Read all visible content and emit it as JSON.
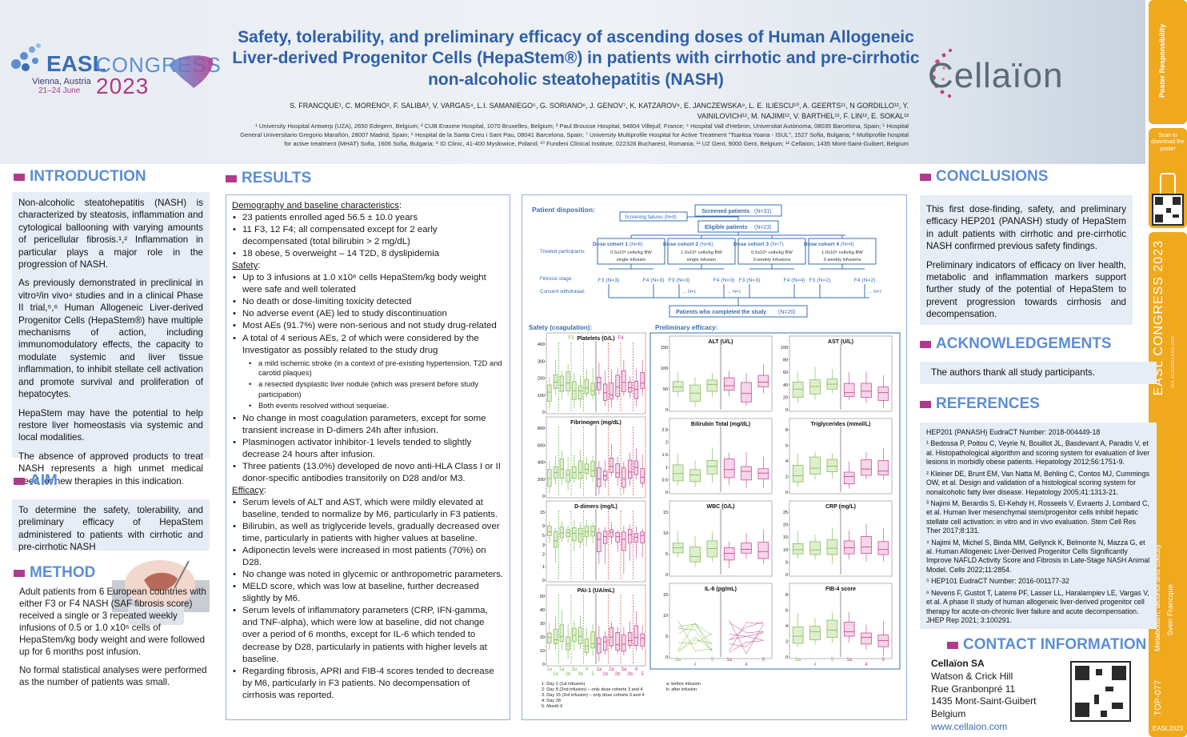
{
  "brand": {
    "easl": "EASL",
    "congress": "CONGRESS",
    "city": "Vienna, Austria",
    "dates": "21–24 June",
    "year": "2023",
    "company": "Cellaïon"
  },
  "title": "Safety, tolerability, and preliminary efficacy of ascending doses of Human Allogeneic Liver-derived Progenitor Cells (HepaStem®) in patients with cirrhotic and pre-cirrhotic non-alcoholic steatohepatitis (NASH)",
  "authors": "S. FRANCQUE¹, C. MORENO², F. SALIBA³, V. VARGAS⁴, L.I. SAMANIEGO⁵, G. SORIANO⁶, J. GENOV⁷, K. KATZAROV⁸, E. JANCZEWSKA⁹, L. E. ILIESCU¹⁰, A. GEERTS¹¹, N GORDILLO¹², Y. VAINILOVICH¹², M. NAJIMI¹², V. BARTHEL¹², F. LIN¹², E. SOKAL¹²",
  "affiliations": "¹ University Hospital Antwerp (UZA), 2650 Edegem, Belgium; ² CUB Erasme Hospital, 1070 Bruxelles, Belgium; ³ Paul Brousse Hospital, 94804 Villejuif, France; ⁴ Hospital Vall d'Hebron, Universitat Autònoma, 08035 Barcelona, Spain; ⁵ Hospital General Universitario Gregorio Marañón, 28007 Madrid, Spain; ⁶ Hospital de la Santa Creu i Sant Pau, 08041 Barcelona, Spain; ⁷ University Multiprofile Hospital for Active Treatment \"Tsaritsa Yoana - ISUL\", 1527 Sofia, Bulgaria; ⁸ Multiprofile hospital for active treatment (MHAT) Sofia, 1606 Sofia, Bulgaria; ⁹ ID Clinic, 41-400 Mysłowice, Poland; ¹⁰ Fundeni Clinical Institute, 022328 Bucharest, Romania; ¹¹ UZ Gent, 9000 Gent, Belgium; ¹² Cellaïon, 1435 Mont-Saint-Guibert, Belgium",
  "sidebar": {
    "scan": "Scan to download the poster",
    "congress": "EASL CONGRESS 2023",
    "session": "Metabolism, alcohol and toxicity",
    "presenter": "Sven Francque",
    "code": "TOP-077",
    "year_code": "EASL2023"
  },
  "introduction": {
    "heading": "INTRODUCTION",
    "p1": "Non-alcoholic steatohepatitis (NASH) is characterized by steatosis, inflammation and cytological ballooning with varying amounts of pericellular fibrosis.¹,² Inflammation in particular plays a major role in the progression of NASH.",
    "p2": "As previously demonstrated in preclinical in vitro³/in vivo⁴ studies and in a clinical Phase II trial,⁵,⁶ Human Allogeneic Liver-derived Progenitor Cells (HepaStem®) have multiple mechanisms of action, including immunomodulatory effects, the capacity to modulate systemic and liver tissue inflammation, to inhibit stellate cell activation and promote survival and proliferation of hepatocytes.",
    "p3": "HepaStem may have the potential to help restore liver homeostasis via systemic and local modalities.",
    "p4": "The absence of approved products to treat NASH represents a high unmet medical need for new therapies in this indication."
  },
  "aim": {
    "heading": "AIM",
    "text": "To determine the safety, tolerability, and preliminary efficacy of HepaStem administered to patients with cirrhotic and pre-cirrhotic NASH"
  },
  "method": {
    "heading": "METHOD",
    "p1": "Adult patients from 6 European countries with either F3 or F4 NASH (SAF fibrosis score) received a single or 3 repeated weekly infusions of 0.5 or 1.0 x10⁶ cells of HepaStem/kg body weight and were followed up for 6 months post infusion.",
    "p2": "No formal statistical analyses were performed as the number of patients was small."
  },
  "results": {
    "heading": "RESULTS",
    "demo_title": "Demography and baseline characteristics",
    "demo": [
      "23 patients enrolled aged 56.5 ± 10.0 years",
      "11 F3, 12 F4; all compensated except for 2 early decompensated (total bilirubin > 2 mg/dL)",
      "18 obese, 5 overweight – 14 T2D, 8 dyslipidemia"
    ],
    "safety_title": "Safety",
    "safety": [
      "Up to 3 infusions at 1.0 x10⁶ cells HepaStem/kg body weight were safe and well tolerated",
      "No death or dose-limiting toxicity detected",
      "No adverse event (AE) led to study discontinuation",
      "Most AEs (91.7%) were non-serious and not study drug-related",
      "A total of 4 serious AEs, 2 of which were considered by the Investigator as possibly related to the study drug"
    ],
    "safety_sub": [
      "a mild ischemic stroke (in a context of pre-existing hypertension, T2D and carotid plaques)",
      "a resected dysplastic liver nodule (which was present before study participation)",
      "Both events resolved without sequelae."
    ],
    "safety2": [
      "No change in most coagulation parameters, except for some transient increase in D-dimers 24h after infusion.",
      "Plasminogen activator inhibitor-1 levels tended to slightly decrease 24 hours after infusion.",
      "Three patients (13.0%) developed de novo anti-HLA Class I or II donor-specific antibodies transitorily on D28 and/or M3."
    ],
    "efficacy_title": "Efficacy",
    "efficacy": [
      "Serum levels of ALT and AST, which were mildly elevated at baseline, tended to normalize by M6, particularly in F3 patients.",
      "Bilirubin, as well as triglyceride levels, gradually decreased over time, particularly in patients with higher values at baseline.",
      "Adiponectin levels were increased in most patients (70%) on D28.",
      "No change was noted in glycemic or anthropometric parameters.",
      "MELD score, which was low at baseline, further decreased slightly by M6.",
      "Serum levels of inflammatory parameters (CRP, IFN-gamma, and TNF-alpha), which were low at baseline, did not change over a period of 6 months, except for IL-6 which tended to decrease by D28, particularly in patients with higher levels at baseline.",
      "Regarding fibrosis, APRI and FIB-4 scores tended to decrease by M6, particularly in F3 patients. No decompensation of cirrhosis was reported."
    ]
  },
  "disposition": {
    "label": "Patient disposition:",
    "screened": "Screened patients",
    "screened_n": "(N=31)",
    "failures": "Screening failures (N=8)",
    "eligible": "Eligible patients",
    "eligible_n": "(N=23)",
    "treated": "Treated participants:",
    "fibrosis": "Fibrosis stage:",
    "withdrawal": "Consent withdrawal:",
    "completed": "Patients who completed the study",
    "completed_n": "(N=20)",
    "cohorts": [
      {
        "name": "Dose cohort 1",
        "n": "(N=6)",
        "dose": "0.5x10⁶ cells/kg BW",
        "sched": "single infusion",
        "f3": "F3 (N=3)",
        "f4": "F4 (N=3)",
        "w3": "",
        "w4": ""
      },
      {
        "name": "Dose cohort 2",
        "n": "(N=6)",
        "dose": "1.0x10⁶ cells/kg BW",
        "sched": "single infusion",
        "f3": "F3 (N=3)",
        "f4": "F4 (N=3)",
        "w3": "N=1",
        "w4": "N=1"
      },
      {
        "name": "Dose cohort 3",
        "n": "(N=7)",
        "dose": "0.5x10⁶ cells/kg BW",
        "sched": "3 weekly infusions",
        "f3": "F3 (N=3)",
        "f4": "F4 (N=4)",
        "w3": "",
        "w4": ""
      },
      {
        "name": "Dose cohort 4",
        "n": "(N=4)",
        "dose": "1.0x10⁶ cells/kg BW",
        "sched": "3 weekly infusions",
        "f3": "F3 (N=2)",
        "f4": "F4 (N=2)",
        "w3": "",
        "w4": "N=1"
      }
    ]
  },
  "charts": {
    "safety_label": "Safety (coagulation):",
    "efficacy_label": "Preliminary efficacy:",
    "f3": "F3",
    "f4": "F4",
    "legend": [
      "1: Day 1 (1st infusion)",
      "2: Day 8 (2nd infusion) – only dose cohorts 3 and 4",
      "3: Day 15 (3rd infusion) – only dose cohorts 3 and 4",
      "4: Day 28",
      "5: Month 6"
    ],
    "legend_ab": [
      "a: before infusion",
      "b: after infusion"
    ],
    "safety_ticks": [
      "1a",
      "1b",
      "2a",
      "2b",
      "3a",
      "3b",
      "4",
      "5"
    ],
    "efficacy_ticks": [
      "1a",
      "4",
      "5"
    ]
  },
  "chart_data": [
    {
      "type": "box",
      "title": "Platelets (G/L)",
      "ylim": [
        0,
        400
      ],
      "yticks": [
        0,
        100,
        200,
        300,
        400
      ]
    },
    {
      "type": "box",
      "title": "Fibrinogen (mg/dL)",
      "ylim": [
        0,
        800
      ],
      "yticks": [
        0,
        200,
        400,
        600,
        800
      ]
    },
    {
      "type": "box",
      "title": "D-dimers (mg/L)",
      "ylim": [
        0,
        15
      ],
      "yticks": [
        0,
        1,
        2,
        3,
        5,
        9,
        15
      ]
    },
    {
      "type": "box",
      "title": "PAI-1 (UA/mL)",
      "ylim": [
        0,
        50
      ],
      "yticks": [
        0,
        10,
        20,
        30,
        40,
        50
      ]
    },
    {
      "type": "box",
      "title": "ALT (U/L)",
      "ylim": [
        0,
        150
      ],
      "yticks": [
        0,
        50,
        100,
        150
      ]
    },
    {
      "type": "box",
      "title": "AST (U/L)",
      "ylim": [
        0,
        100
      ],
      "yticks": [
        0,
        20,
        40,
        60,
        80,
        100
      ]
    },
    {
      "type": "box",
      "title": "Bilirubin Total (mg/dL)",
      "ylim": [
        0,
        2.5
      ],
      "yticks": [
        0.0,
        0.5,
        1.0,
        1.5,
        2.0,
        2.5
      ]
    },
    {
      "type": "box",
      "title": "Triglycerides (mmol/L)",
      "ylim": [
        0,
        8
      ],
      "yticks": [
        0,
        2,
        4,
        6,
        8
      ]
    },
    {
      "type": "box",
      "title": "WBC (G/L)",
      "ylim": [
        0,
        15
      ],
      "yticks": [
        0,
        5,
        10,
        15
      ]
    },
    {
      "type": "box",
      "title": "CRP (mg/L)",
      "ylim": [
        0,
        25
      ],
      "yticks": [
        0,
        5,
        10,
        15,
        20,
        25
      ]
    },
    {
      "type": "line",
      "title": "IL-6 (pg/mL)",
      "ylim": [
        0,
        15
      ],
      "yticks": [
        0,
        5,
        10,
        15
      ]
    },
    {
      "type": "box",
      "title": "FIB-4 score",
      "ylim": [
        0,
        8
      ],
      "yticks": [
        0,
        2,
        4,
        6,
        8
      ]
    }
  ],
  "conclusions": {
    "heading": "CONCLUSIONS",
    "p1": "This first dose-finding, safety, and preliminary efficacy HEP201 (PANASH) study of HepaStem in adult patients with cirrhotic and pre-cirrhotic NASH confirmed previous safety findings.",
    "p2": "Preliminary indicators of efficacy on liver health, metabolic and inflammation markers support further study of the potential of HepaStem to prevent progression towards cirrhosis and decompensation."
  },
  "acknowledgements": {
    "heading": "ACKNOWLEDGEMENTS",
    "text": "The authors thank all study participants."
  },
  "references": {
    "heading": "REFERENCES",
    "items": [
      "HEP201 (PANASH) EudraCT Number: 2018-004449-18",
      "¹ Bedossa P, Poitou C, Veyrie N, Bouillot JL, Basdevant A, Paradis V, et al. Histopathological algorithm and scoring system for evaluation of liver lesions in morbidly obese patients. Hepatology 2012;56:1751-9.",
      "² Kleiner DE, Brunt EM, Van Natta M, Behling C, Contos MJ, Cummings OW, et al. Design and validation of a histological scoring system for nonalcoholic fatty liver disease. Hepatology 2005;41:1313-21.",
      "³ Najimi M, Berardis S, El-Kehdy H, Rosseels V, Evraerts J, Lombard C, et al. Human liver mesenchymal stem/progenitor cells inhibit hepatic stellate cell activation: in vitro and in vivo evaluation. Stem Cell Res Ther 2017;8:131.",
      "⁴ Najimi M, Michel S, Binda MM, Gellynck K, Belmonte N, Mazza G, et al. Human Allogeneic Liver-Derived Progenitor Cells Significantly Improve NAFLD Activity Score and Fibrosis in Late-Stage NASH Animal Model. Cells 2022;11:2854.",
      "⁵ HEP101 EudraCT Number: 2016-001177-32",
      "⁶ Nevens F, Gustot T, Laterre PF, Lasser LL, Haralampiev LE, Vargas V, et al. A phase II study of human allogeneic liver-derived progenitor cell therapy for acute-on-chronic liver failure and acute decompensation. JHEP Rep 2021; 3:100291."
    ]
  },
  "contact": {
    "heading": "CONTACT INFORMATION",
    "company": "Cellaïon SA",
    "line1": "Watson & Crick Hill",
    "line2": "Rue Granbonpré 11",
    "line3": "1435 Mont-Saint-Guibert",
    "line4": "Belgium",
    "web": "www.cellaion.com"
  },
  "colors": {
    "blue": "#5b8ed6",
    "magenta": "#b03a8a",
    "green": "#7bb84a",
    "panel": "#e7edf6",
    "orange": "#f0a81c"
  }
}
